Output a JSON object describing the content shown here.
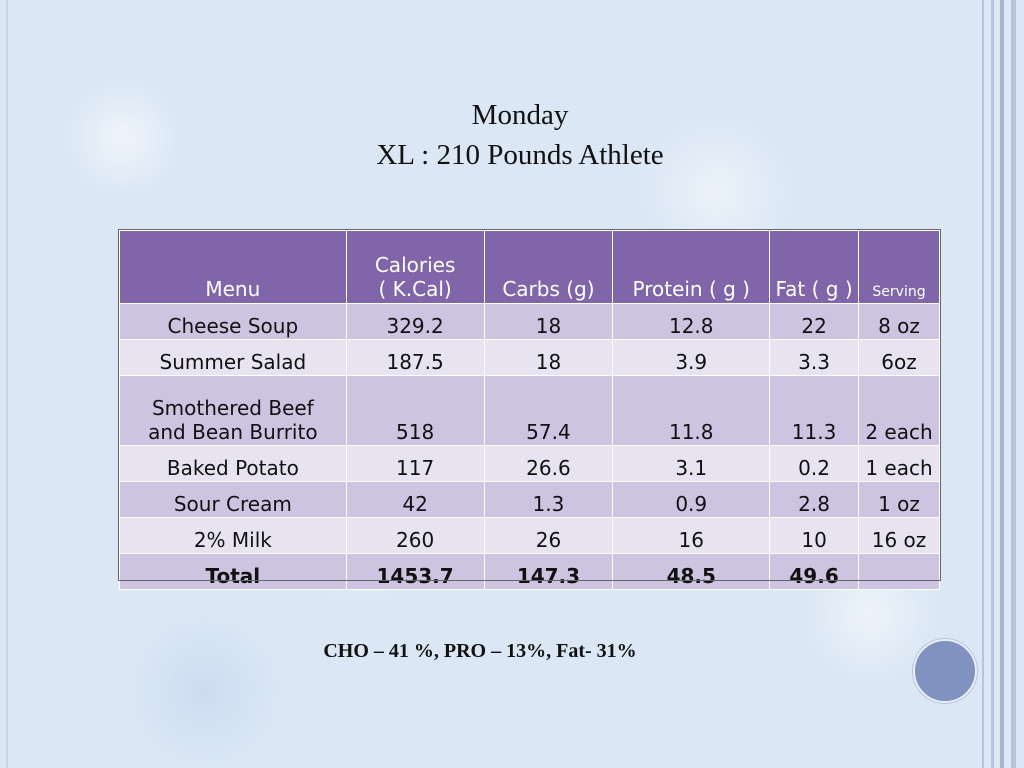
{
  "slide": {
    "title_line1": "Monday",
    "title_line2": "XL : 210 Pounds Athlete",
    "summary": "CHO – 41 %, PRO – 13%, Fat- 31%"
  },
  "table": {
    "headers": {
      "menu": "Menu",
      "calories_line1": "Calories",
      "calories_line2": "( K.Cal)",
      "carbs": "Carbs (g)",
      "protein": "Protein ( g )",
      "fat": "Fat ( g )",
      "serving": "Serving"
    },
    "rows": [
      {
        "menu": "Cheese Soup",
        "calories": "329.2",
        "carbs": "18",
        "protein": "12.8",
        "fat": "22",
        "serving": "8 oz"
      },
      {
        "menu": "Summer Salad",
        "calories": "187.5",
        "carbs": "18",
        "protein": "3.9",
        "fat": "3.3",
        "serving": "6oz"
      },
      {
        "menu_line1": "Smothered Beef",
        "menu_line2": "and Bean Burrito",
        "calories": "518",
        "carbs": "57.4",
        "protein": "11.8",
        "fat": "11.3",
        "serving": "2 each"
      },
      {
        "menu": "Baked Potato",
        "calories": "117",
        "carbs": "26.6",
        "protein": "3.1",
        "fat": "0.2",
        "serving": "1 each"
      },
      {
        "menu": "Sour Cream",
        "calories": "42",
        "carbs": "1.3",
        "protein": "0.9",
        "fat": "2.8",
        "serving": "1 oz"
      },
      {
        "menu": "2% Milk",
        "calories": "260",
        "carbs": "26",
        "protein": "16",
        "fat": "10",
        "serving": "16 oz"
      }
    ],
    "total": {
      "menu": "Total",
      "calories": "1453.7",
      "carbs": "147.3",
      "protein": "48.5",
      "fat": "49.6",
      "serving": ""
    }
  },
  "colors": {
    "header_bg": "#8066a8",
    "row_odd_bg": "#ccc4e0",
    "row_even_bg": "#e7e3f0",
    "background": "#dbe7f5",
    "decor_circle": "#7f92c0"
  }
}
